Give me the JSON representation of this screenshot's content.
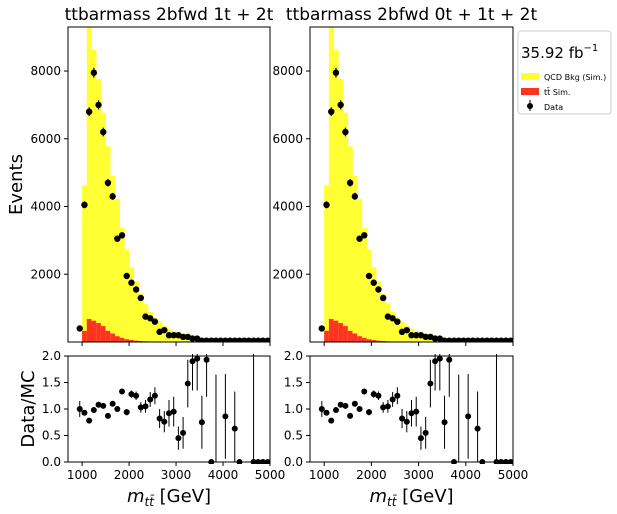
{
  "chart_data": {
    "type": "bar",
    "panels": [
      {
        "title": "ttbarmass  2bfwd 1t + 2t",
        "ylabel": "Events",
        "ratio_ylabel": "Data/MC"
      },
      {
        "title": "ttbarmass  2bfwd 0t + 1t + 2t",
        "ylabel": "",
        "ratio_ylabel": ""
      }
    ],
    "xlabel": "m_{tt̄} [GeV]",
    "xlim": [
      700,
      5000
    ],
    "xticks": [
      1000,
      2000,
      3000,
      4000,
      5000
    ],
    "main_ylim": [
      0,
      9300
    ],
    "main_yticks": [
      2000,
      4000,
      6000,
      8000
    ],
    "ratio_ylim": [
      0,
      2
    ],
    "ratio_yticks": [
      0.0,
      0.5,
      1.0,
      1.5,
      2.0
    ],
    "bin_width": 100,
    "bin_edges_start": 700,
    "series": [
      {
        "name": "QCD Bkg (Sim.)",
        "color": "#ffff33",
        "type": "stacked-hist",
        "values": [
          0,
          0,
          0,
          4300,
          8850,
          8000,
          7200,
          6300,
          5450,
          4650,
          4050,
          3250,
          2650,
          2150,
          1750,
          1400,
          1100,
          870,
          720,
          600,
          470,
          390,
          320,
          290,
          260,
          240,
          200,
          160,
          120,
          100,
          80,
          65,
          50,
          40,
          30,
          25,
          20,
          15,
          12,
          10,
          8,
          6,
          5
        ]
      },
      {
        "name": "tt̄ Sim.",
        "color": "#ff3322",
        "type": "stacked-hist",
        "values": [
          0,
          0,
          0,
          330,
          680,
          630,
          560,
          470,
          330,
          250,
          170,
          120,
          80,
          60,
          40,
          30,
          20,
          15,
          10,
          8,
          6,
          5,
          4,
          3,
          2,
          2,
          1,
          1,
          1,
          0,
          0,
          0,
          0,
          0,
          0,
          0,
          0,
          0,
          0,
          0,
          0,
          0,
          0
        ]
      },
      {
        "name": "Data",
        "color": "#000000",
        "type": "points",
        "x": [
          950,
          1050,
          1150,
          1250,
          1350,
          1450,
          1550,
          1650,
          1750,
          1850,
          1950,
          2050,
          2150,
          2250,
          2350,
          2450,
          2550,
          2650,
          2750,
          2850,
          2950,
          3050,
          3150,
          3250,
          3350,
          3450,
          3550,
          3650,
          3750,
          3850,
          3950,
          4050,
          4150,
          4250,
          4350,
          4450,
          4550,
          4650,
          4750,
          4850,
          4950
        ],
        "y": [
          400,
          4050,
          6800,
          7950,
          7000,
          6200,
          4700,
          4300,
          3050,
          3150,
          1950,
          1750,
          1550,
          1300,
          750,
          700,
          600,
          300,
          350,
          200,
          200,
          200,
          150,
          150,
          100,
          100,
          40,
          40,
          40,
          40,
          40,
          40,
          40,
          40,
          40,
          40,
          40,
          40,
          40,
          40,
          40
        ],
        "err": [
          20,
          65,
          80,
          90,
          85,
          80,
          70,
          65,
          55,
          56,
          45,
          42,
          40,
          36,
          28,
          27,
          25,
          17,
          19,
          14,
          14,
          14,
          12,
          12,
          10,
          10,
          6,
          6,
          6,
          6,
          6,
          6,
          6,
          6,
          6,
          6,
          6,
          6,
          6,
          6,
          6
        ]
      }
    ],
    "ratio": {
      "x": [
        950,
        1050,
        1150,
        1250,
        1350,
        1450,
        1550,
        1650,
        1750,
        1850,
        1950,
        2050,
        2150,
        2250,
        2350,
        2450,
        2550,
        2650,
        2750,
        2850,
        2950,
        3050,
        3150,
        3250,
        3350,
        3450,
        3550,
        3650,
        3750,
        4050,
        4250,
        4350,
        4650,
        4750,
        4850,
        4950
      ],
      "y": [
        1.0,
        0.93,
        0.78,
        0.98,
        1.08,
        1.06,
        0.87,
        1.1,
        1.0,
        1.33,
        0.94,
        1.28,
        1.25,
        1.03,
        1.05,
        1.18,
        1.25,
        0.82,
        0.76,
        0.92,
        0.95,
        0.45,
        0.55,
        1.48,
        1.9,
        1.95,
        0.75,
        1.93,
        0.0,
        0.86,
        0.63,
        0.0,
        0.0,
        0.0,
        0.0,
        0.0
      ],
      "err": [
        0.15,
        0.03,
        0.04,
        0.03,
        0.04,
        0.04,
        0.04,
        0.04,
        0.05,
        0.05,
        0.06,
        0.07,
        0.08,
        0.1,
        0.12,
        0.14,
        0.16,
        0.18,
        0.2,
        0.25,
        0.28,
        0.22,
        0.3,
        0.45,
        0.55,
        0.6,
        0.5,
        0.7,
        0.0,
        0.8,
        0.7,
        0.0,
        0.0,
        0.0,
        0.0,
        0.0
      ]
    },
    "legend": {
      "lumi": "35.92 fb",
      "lumi_exp": "−1",
      "entries": [
        "QCD Bkg (Sim.)",
        "tt̄ Sim.",
        "Data"
      ]
    }
  },
  "colors": {
    "qcd": "#ffff33",
    "ttbar": "#ff3322",
    "data": "#000000"
  }
}
